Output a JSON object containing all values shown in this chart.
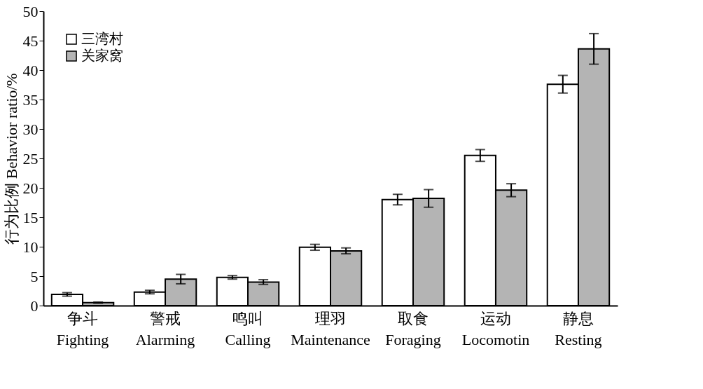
{
  "chart_data": {
    "type": "bar",
    "ylabel": "行为比例 Behavior ratio/%",
    "categories": [
      "争斗\nFighting",
      "警戒\nAlarming",
      "鸣叫\nCalling",
      "理羽\nMaintenance",
      "取食\nForaging",
      "运动\nLocomotin",
      "静息\nResting"
    ],
    "series": [
      {
        "name": "三湾村",
        "color": "#ffffff",
        "values": [
          1.9,
          2.3,
          4.8,
          9.9,
          18.0,
          25.5,
          37.6
        ],
        "errors": [
          0.3,
          0.3,
          0.3,
          0.5,
          0.9,
          1.0,
          1.5
        ]
      },
      {
        "name": "关家窝",
        "color": "#b4b4b4",
        "values": [
          0.5,
          4.5,
          4.0,
          9.3,
          18.2,
          19.6,
          43.6
        ],
        "errors": [
          0.1,
          0.8,
          0.4,
          0.5,
          1.5,
          1.1,
          2.6
        ]
      }
    ],
    "ylim": [
      0,
      50
    ],
    "yticks": [
      0,
      5,
      10,
      15,
      20,
      25,
      30,
      35,
      40,
      45,
      50
    ],
    "grid": false,
    "legend": "top left"
  }
}
